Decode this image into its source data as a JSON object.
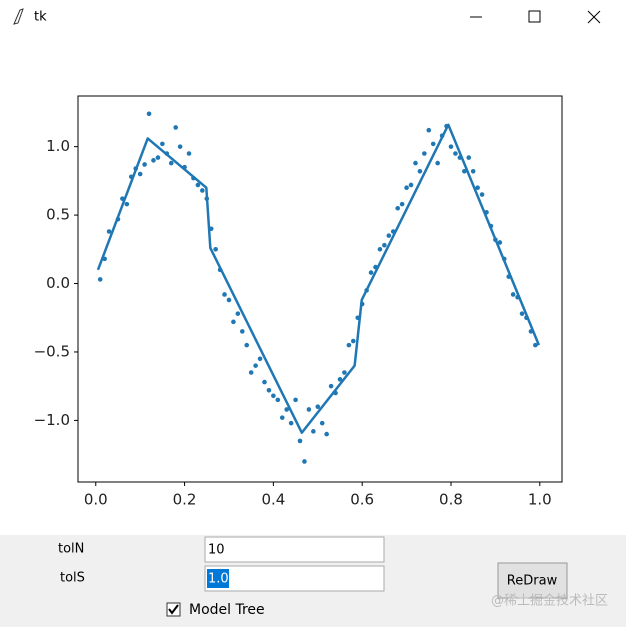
{
  "window": {
    "title": "tk"
  },
  "chart_data": {
    "type": "scatter",
    "xlim": [
      -0.04,
      1.05
    ],
    "ylim": [
      -1.45,
      1.37
    ],
    "xticks": [
      {
        "value": 0,
        "label": "0.0"
      },
      0.2,
      0.4,
      0.6,
      0.8,
      {
        "value": 1,
        "label": "1.0"
      }
    ],
    "yticks": [
      {
        "value": 1,
        "label": "1.0"
      },
      0.5,
      {
        "value": 0,
        "label": "0.0"
      },
      {
        "value": -0.5,
        "label": "−0.5"
      },
      {
        "value": -1,
        "label": "−1.0"
      }
    ],
    "series": [
      {
        "style": "points",
        "color": "#1f77b4",
        "x": [
          0.01,
          0.02,
          0.03,
          0.05,
          0.06,
          0.07,
          0.08,
          0.09,
          0.1,
          0.11,
          0.12,
          0.13,
          0.14,
          0.15,
          0.16,
          0.17,
          0.18,
          0.19,
          0.2,
          0.21,
          0.22,
          0.23,
          0.24,
          0.25,
          0.26,
          0.27,
          0.28,
          0.29,
          0.3,
          0.31,
          0.32,
          0.33,
          0.34,
          0.35,
          0.36,
          0.37,
          0.38,
          0.39,
          0.4,
          0.41,
          0.42,
          0.43,
          0.44,
          0.45,
          0.46,
          0.47,
          0.48,
          0.49,
          0.5,
          0.51,
          0.52,
          0.53,
          0.54,
          0.55,
          0.56,
          0.57,
          0.58,
          0.59,
          0.6,
          0.61,
          0.62,
          0.63,
          0.64,
          0.65,
          0.66,
          0.67,
          0.68,
          0.69,
          0.7,
          0.71,
          0.72,
          0.73,
          0.74,
          0.75,
          0.76,
          0.77,
          0.78,
          0.79,
          0.8,
          0.81,
          0.82,
          0.83,
          0.84,
          0.85,
          0.86,
          0.87,
          0.88,
          0.89,
          0.9,
          0.91,
          0.92,
          0.93,
          0.94,
          0.95,
          0.96,
          0.97,
          0.98,
          0.99
        ],
        "values": [
          0.03,
          0.18,
          0.38,
          0.47,
          0.62,
          0.58,
          0.78,
          0.84,
          0.8,
          0.87,
          1.24,
          0.9,
          0.92,
          1.02,
          0.95,
          0.88,
          1.14,
          1.0,
          0.85,
          0.95,
          0.77,
          0.72,
          0.68,
          0.62,
          0.4,
          0.25,
          0.1,
          -0.08,
          -0.12,
          -0.28,
          -0.22,
          -0.35,
          -0.45,
          -0.65,
          -0.6,
          -0.55,
          -0.72,
          -0.78,
          -0.82,
          -0.85,
          -0.98,
          -0.92,
          -1.02,
          -0.85,
          -1.15,
          -1.3,
          -0.92,
          -1.08,
          -0.9,
          -1.02,
          -1.1,
          -0.75,
          -0.8,
          -0.7,
          -0.65,
          -0.45,
          -0.42,
          -0.25,
          -0.15,
          -0.05,
          0.08,
          0.12,
          0.25,
          0.28,
          0.35,
          0.38,
          0.55,
          0.58,
          0.7,
          0.72,
          0.88,
          0.82,
          0.95,
          1.12,
          1.02,
          0.88,
          1.08,
          1.15,
          1.0,
          0.95,
          0.92,
          0.82,
          0.92,
          0.82,
          0.7,
          0.65,
          0.52,
          0.42,
          0.32,
          0.3,
          0.18,
          0.05,
          -0.08,
          -0.1,
          -0.22,
          -0.25,
          -0.35,
          -0.45
        ]
      },
      {
        "style": "line",
        "color": "#1f77b4",
        "x": [
          0.005,
          0.117,
          0.249,
          0.258,
          0.464,
          0.583,
          0.599,
          0.794,
          0.998
        ],
        "values": [
          0.1,
          1.06,
          0.7,
          0.26,
          -1.09,
          -0.6,
          -0.12,
          1.16,
          -0.45
        ]
      }
    ]
  },
  "controls": {
    "tolN_label": "tolN",
    "tolN_value": "10",
    "tolS_label": "tolS",
    "tolS_value": "1.0",
    "redraw": "ReDraw",
    "model_tree": "Model Tree"
  },
  "watermark": "@稀土掘金技术社区"
}
